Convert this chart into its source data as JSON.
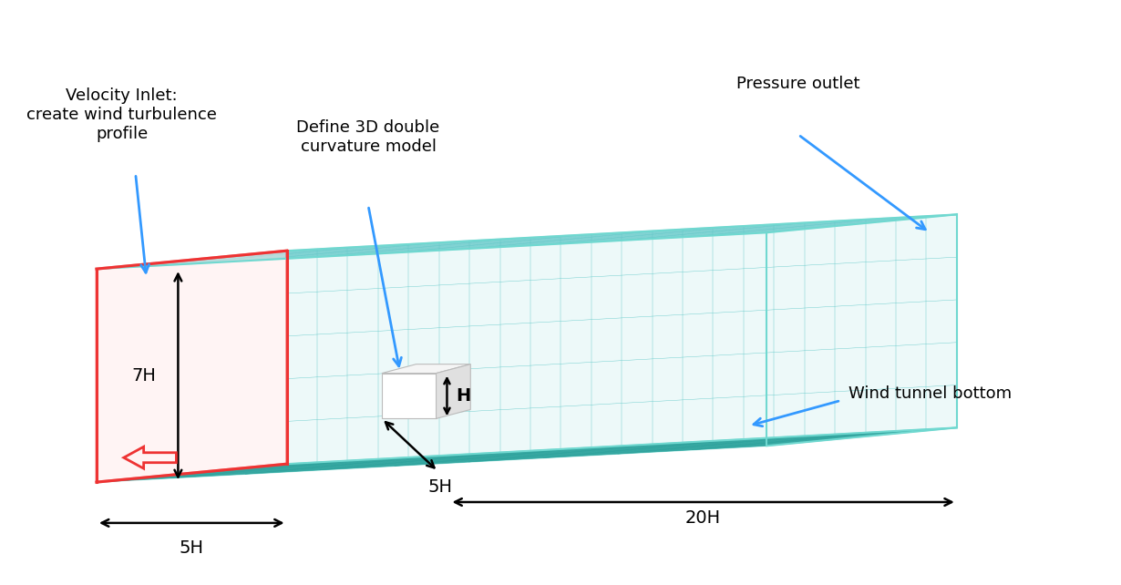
{
  "bg_color": "#ffffff",
  "teal": "#3db8b0",
  "teal_edge": "#70d8d0",
  "teal_grid": "#2aa09a",
  "inlet_fill": "#ffe8e8",
  "inlet_edge": "#ee3333",
  "top_fill": "#b0e8e8",
  "top_edge": "#70d8d0",
  "right_fill": "#b0e8e8",
  "right_edge": "#70d8d0",
  "blue_arrow": "#3399ff",
  "black": "#000000",
  "labels": {
    "velocity_inlet": "Velocity Inlet:\ncreate wind turbulence\nprofile",
    "define_model": "Define 3D double\ncurvature model",
    "pressure_outlet": "Pressure outlet",
    "wind_tunnel_bottom": "Wind tunnel bottom",
    "dim_7H": "7H",
    "dim_5H_bottom": "5H",
    "dim_5H_diag": "5H",
    "dim_20H": "20H",
    "dim_H": "H"
  },
  "fontsize": 13
}
